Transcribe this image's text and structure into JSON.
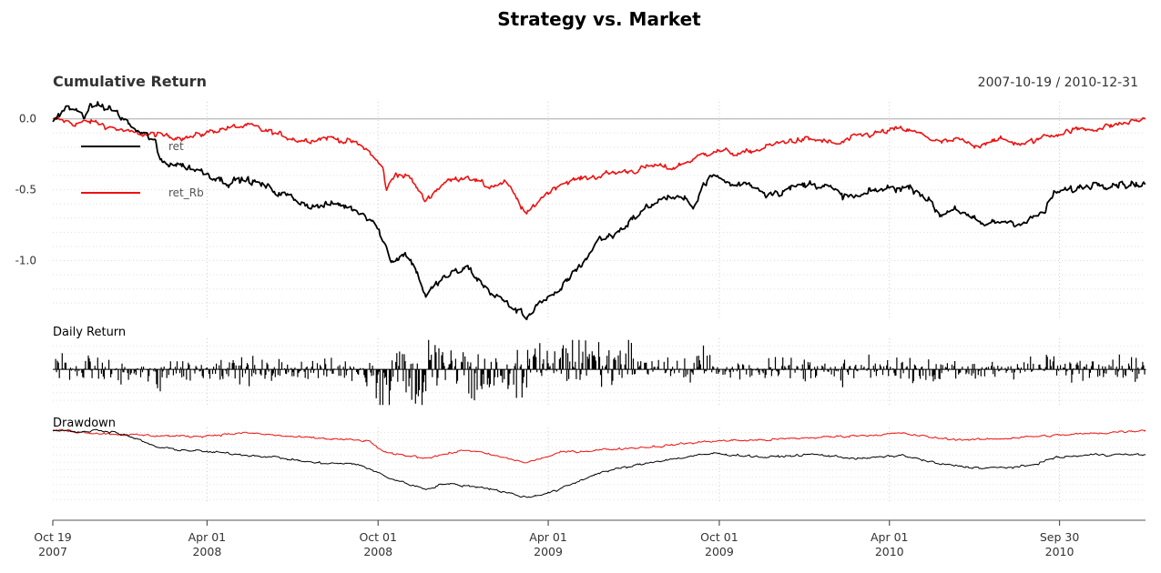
{
  "chart_data": {
    "type": "line",
    "title": "Strategy vs. Market",
    "date_range": "2007-10-19 / 2010-12-31",
    "x_range": [
      "2007-10-19",
      "2010-12-31"
    ],
    "x_ticks": [
      {
        "date": "2007-10-19",
        "line1": "Oct 19",
        "line2": "2007"
      },
      {
        "date": "2008-04-01",
        "line1": "Apr 01",
        "line2": "2008"
      },
      {
        "date": "2008-10-01",
        "line1": "Oct 01",
        "line2": "2008"
      },
      {
        "date": "2009-04-01",
        "line1": "Apr 01",
        "line2": "2009"
      },
      {
        "date": "2009-10-01",
        "line1": "Oct 01",
        "line2": "2009"
      },
      {
        "date": "2010-04-01",
        "line1": "Apr 01",
        "line2": "2010"
      },
      {
        "date": "2010-09-30",
        "line1": "Sep 30",
        "line2": "2010"
      }
    ],
    "panels": {
      "cumulative": {
        "title": "Cumulative Return",
        "ylim": [
          -1.42,
          0.12
        ],
        "y_ticks": [
          {
            "value": 0.0,
            "label": "0.0"
          },
          {
            "value": -0.5,
            "label": "-0.5"
          },
          {
            "value": -1.0,
            "label": "-1.0"
          }
        ],
        "baseline": 0.0
      },
      "daily": {
        "title": "Daily Return",
        "ylim": [
          -0.12,
          0.1
        ]
      },
      "drawdown": {
        "title": "Drawdown",
        "ylim": [
          -1.45,
          0.05
        ]
      }
    },
    "legend": {
      "placement": "top-left",
      "entries": [
        {
          "name": "ret",
          "color": "#000000"
        },
        {
          "name": "ret_Rb",
          "color": "#ee1111"
        }
      ]
    },
    "series": [
      {
        "name": "ret",
        "color": "#000000",
        "points": [
          [
            "2007-10-19",
            -0.02
          ],
          [
            "2007-11-01",
            0.08
          ],
          [
            "2007-11-20",
            0.03
          ],
          [
            "2007-12-05",
            0.1
          ],
          [
            "2007-12-24",
            0.06
          ],
          [
            "2008-01-10",
            -0.05
          ],
          [
            "2008-01-25",
            -0.12
          ],
          [
            "2008-02-05",
            -0.15
          ],
          [
            "2008-02-10",
            -0.3
          ],
          [
            "2008-03-01",
            -0.32
          ],
          [
            "2008-04-01",
            -0.38
          ],
          [
            "2008-04-20",
            -0.44
          ],
          [
            "2008-05-15",
            -0.43
          ],
          [
            "2008-06-10",
            -0.5
          ],
          [
            "2008-07-05",
            -0.57
          ],
          [
            "2008-07-25",
            -0.62
          ],
          [
            "2008-08-20",
            -0.6
          ],
          [
            "2008-09-10",
            -0.65
          ],
          [
            "2008-09-25",
            -0.7
          ],
          [
            "2008-10-06",
            -0.85
          ],
          [
            "2008-10-15",
            -1.0
          ],
          [
            "2008-10-30",
            -0.95
          ],
          [
            "2008-11-10",
            -1.05
          ],
          [
            "2008-11-21",
            -1.25
          ],
          [
            "2008-12-10",
            -1.12
          ],
          [
            "2009-01-05",
            -1.05
          ],
          [
            "2009-01-25",
            -1.2
          ],
          [
            "2009-02-15",
            -1.3
          ],
          [
            "2009-03-09",
            -1.4
          ],
          [
            "2009-03-20",
            -1.3
          ],
          [
            "2009-04-10",
            -1.25
          ],
          [
            "2009-04-25",
            -1.1
          ],
          [
            "2009-05-10",
            -1.0
          ],
          [
            "2009-05-25",
            -0.85
          ],
          [
            "2009-06-10",
            -0.82
          ],
          [
            "2009-07-05",
            -0.68
          ],
          [
            "2009-07-25",
            -0.58
          ],
          [
            "2009-08-10",
            -0.55
          ],
          [
            "2009-09-05",
            -0.6
          ],
          [
            "2009-09-15",
            -0.45
          ],
          [
            "2009-09-25",
            -0.4
          ],
          [
            "2009-10-15",
            -0.47
          ],
          [
            "2009-11-01",
            -0.45
          ],
          [
            "2009-11-20",
            -0.52
          ],
          [
            "2009-12-10",
            -0.5
          ],
          [
            "2010-01-10",
            -0.45
          ],
          [
            "2010-01-25",
            -0.48
          ],
          [
            "2010-02-10",
            -0.55
          ],
          [
            "2010-03-01",
            -0.55
          ],
          [
            "2010-03-20",
            -0.5
          ],
          [
            "2010-04-15",
            -0.48
          ],
          [
            "2010-05-01",
            -0.5
          ],
          [
            "2010-05-10",
            -0.55
          ],
          [
            "2010-05-25",
            -0.68
          ],
          [
            "2010-06-10",
            -0.62
          ],
          [
            "2010-06-25",
            -0.7
          ],
          [
            "2010-07-10",
            -0.75
          ],
          [
            "2010-08-01",
            -0.72
          ],
          [
            "2010-08-25",
            -0.73
          ],
          [
            "2010-09-15",
            -0.65
          ],
          [
            "2010-09-25",
            -0.52
          ],
          [
            "2010-10-15",
            -0.5
          ],
          [
            "2010-11-10",
            -0.45
          ],
          [
            "2010-12-31",
            -0.46
          ]
        ]
      },
      {
        "name": "ret_Rb",
        "color": "#ee1111",
        "points": [
          [
            "2007-10-19",
            0.0
          ],
          [
            "2007-11-10",
            -0.03
          ],
          [
            "2007-12-01",
            -0.02
          ],
          [
            "2008-01-10",
            -0.1
          ],
          [
            "2008-02-15",
            -0.12
          ],
          [
            "2008-03-15",
            -0.13
          ],
          [
            "2008-04-15",
            -0.07
          ],
          [
            "2008-05-15",
            -0.05
          ],
          [
            "2008-06-10",
            -0.1
          ],
          [
            "2008-07-10",
            -0.15
          ],
          [
            "2008-08-10",
            -0.13
          ],
          [
            "2008-09-05",
            -0.17
          ],
          [
            "2008-09-20",
            -0.22
          ],
          [
            "2008-10-06",
            -0.35
          ],
          [
            "2008-10-10",
            -0.5
          ],
          [
            "2008-10-20",
            -0.38
          ],
          [
            "2008-11-05",
            -0.42
          ],
          [
            "2008-11-20",
            -0.58
          ],
          [
            "2008-12-10",
            -0.45
          ],
          [
            "2009-01-05",
            -0.4
          ],
          [
            "2009-01-25",
            -0.48
          ],
          [
            "2009-02-15",
            -0.45
          ],
          [
            "2009-03-09",
            -0.68
          ],
          [
            "2009-03-25",
            -0.55
          ],
          [
            "2009-04-15",
            -0.45
          ],
          [
            "2009-05-10",
            -0.42
          ],
          [
            "2009-06-10",
            -0.38
          ],
          [
            "2009-07-05",
            -0.36
          ],
          [
            "2009-07-25",
            -0.33
          ],
          [
            "2009-08-10",
            -0.35
          ],
          [
            "2009-09-05",
            -0.28
          ],
          [
            "2009-09-25",
            -0.22
          ],
          [
            "2009-10-25",
            -0.25
          ],
          [
            "2009-11-20",
            -0.2
          ],
          [
            "2009-12-15",
            -0.15
          ],
          [
            "2010-01-15",
            -0.15
          ],
          [
            "2010-02-05",
            -0.18
          ],
          [
            "2010-03-01",
            -0.12
          ],
          [
            "2010-04-15",
            -0.07
          ],
          [
            "2010-05-10",
            -0.12
          ],
          [
            "2010-05-25",
            -0.17
          ],
          [
            "2010-06-15",
            -0.15
          ],
          [
            "2010-07-01",
            -0.2
          ],
          [
            "2010-07-20",
            -0.14
          ],
          [
            "2010-08-25",
            -0.18
          ],
          [
            "2010-09-15",
            -0.12
          ],
          [
            "2010-10-15",
            -0.08
          ],
          [
            "2010-11-15",
            -0.06
          ],
          [
            "2010-12-31",
            0.0
          ]
        ]
      }
    ],
    "drawdown_series": [
      {
        "name": "ret",
        "color": "#000000",
        "points": [
          [
            "2007-10-19",
            -0.02
          ],
          [
            "2007-11-01",
            0.0
          ],
          [
            "2007-11-20",
            -0.05
          ],
          [
            "2007-12-05",
            0.0
          ],
          [
            "2007-12-24",
            -0.04
          ],
          [
            "2008-01-10",
            -0.14
          ],
          [
            "2008-02-10",
            -0.36
          ],
          [
            "2008-04-01",
            -0.44
          ],
          [
            "2008-06-10",
            -0.54
          ],
          [
            "2008-07-25",
            -0.66
          ],
          [
            "2008-09-10",
            -0.69
          ],
          [
            "2008-10-15",
            -0.98
          ],
          [
            "2008-11-21",
            -1.19
          ],
          [
            "2008-12-10",
            -1.08
          ],
          [
            "2009-01-25",
            -1.16
          ],
          [
            "2009-03-09",
            -1.36
          ],
          [
            "2009-04-10",
            -1.22
          ],
          [
            "2009-05-25",
            -0.86
          ],
          [
            "2009-07-05",
            -0.71
          ],
          [
            "2009-07-25",
            -0.63
          ],
          [
            "2009-09-25",
            -0.47
          ],
          [
            "2009-11-20",
            -0.55
          ],
          [
            "2010-01-10",
            -0.49
          ],
          [
            "2010-03-01",
            -0.58
          ],
          [
            "2010-04-15",
            -0.51
          ],
          [
            "2010-05-25",
            -0.69
          ],
          [
            "2010-07-10",
            -0.77
          ],
          [
            "2010-08-25",
            -0.74
          ],
          [
            "2010-09-25",
            -0.56
          ],
          [
            "2010-11-10",
            -0.49
          ],
          [
            "2010-12-31",
            -0.5
          ]
        ]
      },
      {
        "name": "ret_Rb",
        "color": "#ee1111",
        "points": [
          [
            "2007-10-19",
            0.0
          ],
          [
            "2007-11-10",
            -0.03
          ],
          [
            "2008-01-10",
            -0.1
          ],
          [
            "2008-03-15",
            -0.13
          ],
          [
            "2008-05-15",
            -0.06
          ],
          [
            "2008-07-10",
            -0.15
          ],
          [
            "2008-09-20",
            -0.22
          ],
          [
            "2008-10-10",
            -0.47
          ],
          [
            "2008-11-20",
            -0.56
          ],
          [
            "2009-01-05",
            -0.4
          ],
          [
            "2009-03-09",
            -0.66
          ],
          [
            "2009-04-15",
            -0.45
          ],
          [
            "2009-07-25",
            -0.33
          ],
          [
            "2009-09-25",
            -0.22
          ],
          [
            "2009-11-20",
            -0.2
          ],
          [
            "2010-01-15",
            -0.15
          ],
          [
            "2010-04-15",
            -0.07
          ],
          [
            "2010-05-25",
            -0.17
          ],
          [
            "2010-07-01",
            -0.2
          ],
          [
            "2010-09-15",
            -0.12
          ],
          [
            "2010-11-15",
            -0.06
          ],
          [
            "2010-12-31",
            0.0
          ]
        ]
      }
    ]
  }
}
